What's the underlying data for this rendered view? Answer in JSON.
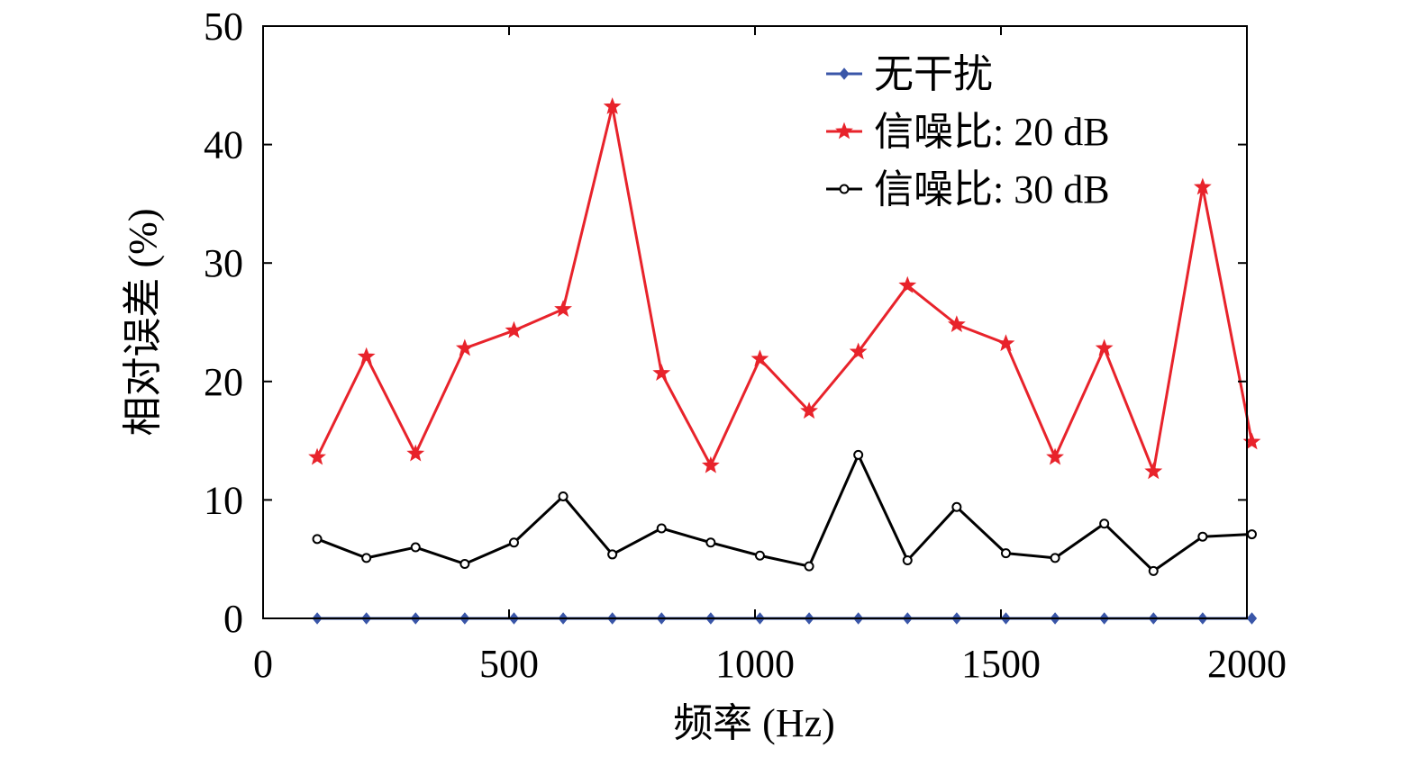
{
  "chart_data": {
    "type": "line",
    "xlabel": "频率 (Hz)",
    "ylabel": "相对误差 (%)",
    "xlim": [
      0,
      2000
    ],
    "ylim": [
      0,
      50
    ],
    "xticks": [
      0,
      500,
      1000,
      1500,
      2000
    ],
    "xtick_labels": [
      "0",
      "500",
      "1000",
      "1500",
      "2000"
    ],
    "yticks": [
      0,
      10,
      20,
      30,
      40,
      50
    ],
    "ytick_labels": [
      "0",
      "10",
      "20",
      "30",
      "40",
      "50"
    ],
    "grid": false,
    "legend_position": "top-right",
    "x": [
      110,
      210,
      310,
      410,
      510,
      610,
      710,
      810,
      910,
      1010,
      1110,
      1210,
      1310,
      1410,
      1510,
      1610,
      1710,
      1810,
      1910,
      2010
    ],
    "series": [
      {
        "name": "无干扰",
        "color": "#3a56a8",
        "marker": "diamond",
        "values": [
          0,
          0,
          0,
          0,
          0,
          0,
          0,
          0,
          0,
          0,
          0,
          0,
          0,
          0,
          0,
          0,
          0,
          0,
          0,
          0
        ]
      },
      {
        "name": "信噪比: 20 dB",
        "color": "#e8232b",
        "marker": "star",
        "values": [
          13.6,
          22.1,
          13.9,
          22.8,
          24.3,
          26.1,
          43.2,
          20.7,
          12.9,
          21.9,
          17.5,
          22.5,
          28.1,
          24.8,
          23.2,
          13.6,
          22.8,
          12.4,
          36.4,
          14.9
        ]
      },
      {
        "name": "信噪比: 30 dB",
        "color": "#000000",
        "marker": "circle",
        "values": [
          6.7,
          5.1,
          6.0,
          4.6,
          6.4,
          10.3,
          5.4,
          7.6,
          6.4,
          5.3,
          4.4,
          13.8,
          4.9,
          9.4,
          5.5,
          5.1,
          8.0,
          4.0,
          6.9,
          7.1
        ]
      }
    ]
  }
}
